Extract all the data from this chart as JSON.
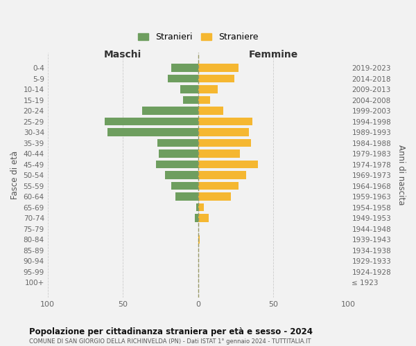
{
  "age_groups": [
    "0-4",
    "5-9",
    "10-14",
    "15-19",
    "20-24",
    "25-29",
    "30-34",
    "35-39",
    "40-44",
    "45-49",
    "50-54",
    "55-59",
    "60-64",
    "65-69",
    "70-74",
    "75-79",
    "80-84",
    "85-89",
    "90-94",
    "95-99",
    "100+"
  ],
  "birth_years": [
    "2019-2023",
    "2014-2018",
    "2009-2013",
    "2004-2008",
    "1999-2003",
    "1994-1998",
    "1989-1993",
    "1984-1988",
    "1979-1983",
    "1974-1978",
    "1969-1973",
    "1964-1968",
    "1959-1963",
    "1954-1958",
    "1949-1953",
    "1944-1948",
    "1939-1943",
    "1934-1938",
    "1929-1933",
    "1924-1928",
    "≤ 1923"
  ],
  "males": [
    18,
    20,
    12,
    10,
    37,
    62,
    60,
    27,
    26,
    28,
    22,
    18,
    15,
    1,
    2,
    0,
    0,
    0,
    0,
    0,
    0
  ],
  "females": [
    27,
    24,
    13,
    8,
    17,
    36,
    34,
    35,
    28,
    40,
    32,
    27,
    22,
    4,
    7,
    0,
    1,
    0,
    0,
    0,
    0
  ],
  "male_color": "#6e9e5f",
  "female_color": "#f5b731",
  "background_color": "#f2f2f2",
  "grid_color": "#cccccc",
  "title": "Popolazione per cittadinanza straniera per età e sesso - 2024",
  "subtitle": "COMUNE DI SAN GIORGIO DELLA RICHINVELDA (PN) - Dati ISTAT 1° gennaio 2024 - TUTTITALIA.IT",
  "xlabel_left": "Maschi",
  "xlabel_right": "Femmine",
  "ylabel_left": "Fasce di età",
  "ylabel_right": "Anni di nascita",
  "legend_male": "Stranieri",
  "legend_female": "Straniere",
  "xlim": 100,
  "center_line_color": "#999966"
}
